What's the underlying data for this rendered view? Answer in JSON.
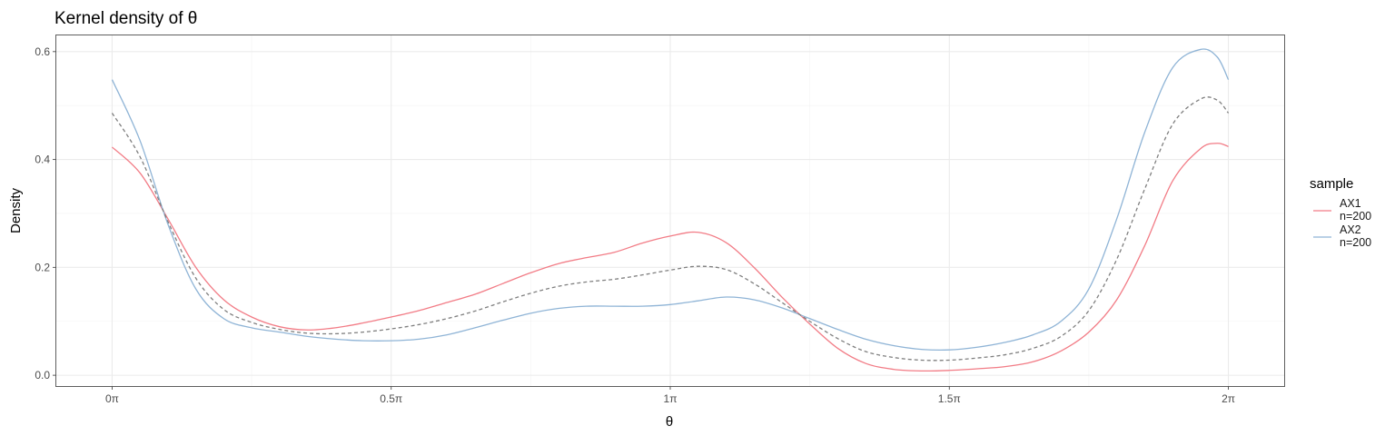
{
  "chart_data": {
    "type": "line",
    "title": "Kernel density of θ",
    "xlabel": "θ",
    "ylabel": "Density",
    "x_ticks": [
      {
        "value": 0,
        "label": "0π"
      },
      {
        "value": 0.5,
        "label": "0.5π"
      },
      {
        "value": 1,
        "label": "1π"
      },
      {
        "value": 1.5,
        "label": "1.5π"
      },
      {
        "value": 2,
        "label": "2π"
      }
    ],
    "y_ticks": [
      {
        "value": 0.0,
        "label": "0.0"
      },
      {
        "value": 0.2,
        "label": "0.2"
      },
      {
        "value": 0.4,
        "label": "0.4"
      },
      {
        "value": 0.6,
        "label": "0.6"
      }
    ],
    "xlim": [
      -0.1,
      2.1
    ],
    "ylim": [
      -0.02,
      0.63
    ],
    "x_unit": "π radians",
    "grid": true,
    "legend": {
      "title": "sample",
      "position": "right"
    },
    "series": [
      {
        "name": "AX1\nn=200",
        "color": "#F27C86",
        "dash": "solid",
        "x": [
          0,
          0.05,
          0.1,
          0.15,
          0.2,
          0.25,
          0.3,
          0.35,
          0.4,
          0.45,
          0.5,
          0.55,
          0.6,
          0.65,
          0.7,
          0.75,
          0.8,
          0.85,
          0.9,
          0.95,
          1.0,
          1.05,
          1.1,
          1.15,
          1.2,
          1.25,
          1.3,
          1.35,
          1.4,
          1.45,
          1.5,
          1.55,
          1.6,
          1.65,
          1.7,
          1.75,
          1.8,
          1.85,
          1.9,
          1.95,
          1.98,
          2.0
        ],
        "y": [
          0.423,
          0.375,
          0.29,
          0.2,
          0.14,
          0.108,
          0.09,
          0.084,
          0.088,
          0.097,
          0.108,
          0.12,
          0.135,
          0.15,
          0.17,
          0.19,
          0.207,
          0.218,
          0.228,
          0.245,
          0.258,
          0.265,
          0.246,
          0.2,
          0.145,
          0.095,
          0.05,
          0.022,
          0.011,
          0.008,
          0.009,
          0.012,
          0.016,
          0.025,
          0.045,
          0.08,
          0.14,
          0.24,
          0.36,
          0.42,
          0.43,
          0.424
        ]
      },
      {
        "name": "AX2\nn=200",
        "color": "#8FB4D6",
        "dash": "solid",
        "x": [
          0,
          0.05,
          0.1,
          0.15,
          0.2,
          0.25,
          0.3,
          0.35,
          0.4,
          0.45,
          0.5,
          0.55,
          0.6,
          0.65,
          0.7,
          0.75,
          0.8,
          0.85,
          0.9,
          0.95,
          1.0,
          1.05,
          1.1,
          1.15,
          1.2,
          1.25,
          1.3,
          1.35,
          1.4,
          1.45,
          1.5,
          1.55,
          1.6,
          1.65,
          1.7,
          1.75,
          1.8,
          1.85,
          1.9,
          1.95,
          1.98,
          2.0
        ],
        "y": [
          0.548,
          0.435,
          0.28,
          0.16,
          0.105,
          0.088,
          0.08,
          0.072,
          0.067,
          0.064,
          0.064,
          0.067,
          0.075,
          0.088,
          0.102,
          0.115,
          0.124,
          0.128,
          0.128,
          0.128,
          0.131,
          0.138,
          0.145,
          0.14,
          0.125,
          0.105,
          0.085,
          0.067,
          0.055,
          0.048,
          0.047,
          0.052,
          0.061,
          0.075,
          0.1,
          0.16,
          0.29,
          0.45,
          0.57,
          0.604,
          0.59,
          0.548
        ]
      },
      {
        "name": "",
        "color": "#7F7F7F",
        "dash": "dashed",
        "x": [
          0,
          0.05,
          0.1,
          0.15,
          0.2,
          0.25,
          0.3,
          0.35,
          0.4,
          0.45,
          0.5,
          0.55,
          0.6,
          0.65,
          0.7,
          0.75,
          0.8,
          0.85,
          0.9,
          0.95,
          1.0,
          1.05,
          1.1,
          1.15,
          1.2,
          1.25,
          1.3,
          1.35,
          1.4,
          1.45,
          1.5,
          1.55,
          1.6,
          1.65,
          1.7,
          1.75,
          1.8,
          1.85,
          1.9,
          1.95,
          1.98,
          2.0
        ],
        "y": [
          0.486,
          0.405,
          0.285,
          0.18,
          0.122,
          0.098,
          0.085,
          0.078,
          0.077,
          0.08,
          0.086,
          0.094,
          0.105,
          0.119,
          0.136,
          0.152,
          0.165,
          0.173,
          0.178,
          0.186,
          0.195,
          0.202,
          0.196,
          0.17,
          0.135,
          0.1,
          0.068,
          0.044,
          0.033,
          0.028,
          0.028,
          0.032,
          0.038,
          0.05,
          0.072,
          0.12,
          0.215,
          0.345,
          0.465,
          0.512,
          0.51,
          0.486
        ]
      }
    ]
  }
}
